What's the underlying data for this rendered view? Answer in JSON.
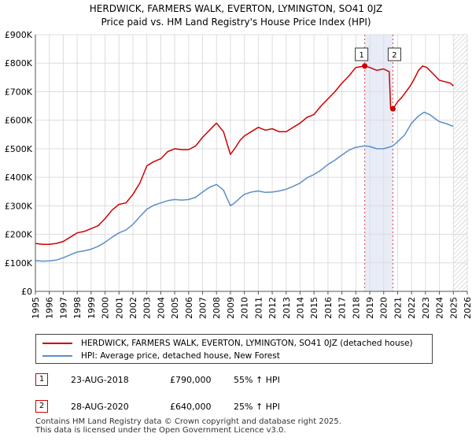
{
  "chart_data": {
    "type": "line",
    "title": "HERDWICK, FARMERS WALK, EVERTON, LYMINGTON, SO41 0JZ",
    "subtitle": "Price paid vs. HM Land Registry's House Price Index (HPI)",
    "xlabel": "",
    "ylabel": "",
    "xlim": [
      1995,
      2026
    ],
    "ylim": [
      0,
      900000
    ],
    "x_ticks": [
      1995,
      1996,
      1997,
      1998,
      1999,
      2000,
      2001,
      2002,
      2003,
      2004,
      2005,
      2006,
      2007,
      2008,
      2009,
      2010,
      2011,
      2012,
      2013,
      2014,
      2015,
      2016,
      2017,
      2018,
      2019,
      2020,
      2021,
      2022,
      2023,
      2024,
      2025,
      2026
    ],
    "y_ticks": [
      {
        "value": 0,
        "label": "£0"
      },
      {
        "value": 100000,
        "label": "£100K"
      },
      {
        "value": 200000,
        "label": "£200K"
      },
      {
        "value": 300000,
        "label": "£300K"
      },
      {
        "value": 400000,
        "label": "£400K"
      },
      {
        "value": 500000,
        "label": "£500K"
      },
      {
        "value": 600000,
        "label": "£600K"
      },
      {
        "value": 700000,
        "label": "£700K"
      },
      {
        "value": 800000,
        "label": "£800K"
      },
      {
        "value": 900000,
        "label": "£900K"
      }
    ],
    "grid": true,
    "shaded_period": [
      2018.64,
      2020.66
    ],
    "data_end": 2025.0,
    "series": [
      {
        "name": "HERDWICK, FARMERS WALK, EVERTON, LYMINGTON, SO41 0JZ (detached house)",
        "color": "#cc0000",
        "points": [
          [
            1995.0,
            168000
          ],
          [
            1995.5,
            165000
          ],
          [
            1996.0,
            165000
          ],
          [
            1996.5,
            168000
          ],
          [
            1997.0,
            175000
          ],
          [
            1997.5,
            190000
          ],
          [
            1998.0,
            205000
          ],
          [
            1998.5,
            210000
          ],
          [
            1999.0,
            220000
          ],
          [
            1999.5,
            230000
          ],
          [
            2000.0,
            255000
          ],
          [
            2000.5,
            285000
          ],
          [
            2001.0,
            305000
          ],
          [
            2001.5,
            310000
          ],
          [
            2002.0,
            340000
          ],
          [
            2002.5,
            380000
          ],
          [
            2003.0,
            440000
          ],
          [
            2003.5,
            455000
          ],
          [
            2004.0,
            465000
          ],
          [
            2004.5,
            490000
          ],
          [
            2005.0,
            500000
          ],
          [
            2005.5,
            497000
          ],
          [
            2006.0,
            497000
          ],
          [
            2006.5,
            510000
          ],
          [
            2007.0,
            540000
          ],
          [
            2007.5,
            565000
          ],
          [
            2008.0,
            590000
          ],
          [
            2008.5,
            560000
          ],
          [
            2009.0,
            480000
          ],
          [
            2009.3,
            500000
          ],
          [
            2009.7,
            530000
          ],
          [
            2010.0,
            545000
          ],
          [
            2010.5,
            560000
          ],
          [
            2011.0,
            575000
          ],
          [
            2011.5,
            565000
          ],
          [
            2012.0,
            570000
          ],
          [
            2012.5,
            560000
          ],
          [
            2013.0,
            560000
          ],
          [
            2013.5,
            575000
          ],
          [
            2014.0,
            590000
          ],
          [
            2014.5,
            610000
          ],
          [
            2015.0,
            620000
          ],
          [
            2015.5,
            650000
          ],
          [
            2016.0,
            675000
          ],
          [
            2016.5,
            700000
          ],
          [
            2017.0,
            730000
          ],
          [
            2017.5,
            755000
          ],
          [
            2018.0,
            785000
          ],
          [
            2018.64,
            790000
          ],
          [
            2019.0,
            785000
          ],
          [
            2019.5,
            775000
          ],
          [
            2020.0,
            780000
          ],
          [
            2020.4,
            770000
          ],
          [
            2020.5,
            640000
          ],
          [
            2020.66,
            640000
          ],
          [
            2020.8,
            650000
          ],
          [
            2021.0,
            665000
          ],
          [
            2021.3,
            680000
          ],
          [
            2021.6,
            700000
          ],
          [
            2021.9,
            720000
          ],
          [
            2022.2,
            745000
          ],
          [
            2022.5,
            775000
          ],
          [
            2022.8,
            790000
          ],
          [
            2023.1,
            785000
          ],
          [
            2023.4,
            770000
          ],
          [
            2023.7,
            755000
          ],
          [
            2024.0,
            740000
          ],
          [
            2024.4,
            735000
          ],
          [
            2024.8,
            730000
          ],
          [
            2025.0,
            720000
          ]
        ]
      },
      {
        "name": "HPI: Average price, detached house, New Forest",
        "color": "#5b8ec9",
        "points": [
          [
            1995.0,
            108000
          ],
          [
            1995.5,
            106000
          ],
          [
            1996.0,
            107000
          ],
          [
            1996.5,
            110000
          ],
          [
            1997.0,
            118000
          ],
          [
            1997.5,
            128000
          ],
          [
            1998.0,
            138000
          ],
          [
            1998.5,
            142000
          ],
          [
            1999.0,
            148000
          ],
          [
            1999.5,
            158000
          ],
          [
            2000.0,
            172000
          ],
          [
            2000.5,
            190000
          ],
          [
            2001.0,
            205000
          ],
          [
            2001.5,
            215000
          ],
          [
            2002.0,
            235000
          ],
          [
            2002.5,
            262000
          ],
          [
            2003.0,
            288000
          ],
          [
            2003.5,
            302000
          ],
          [
            2004.0,
            310000
          ],
          [
            2004.5,
            318000
          ],
          [
            2005.0,
            322000
          ],
          [
            2005.5,
            320000
          ],
          [
            2006.0,
            322000
          ],
          [
            2006.5,
            330000
          ],
          [
            2007.0,
            348000
          ],
          [
            2007.5,
            365000
          ],
          [
            2008.0,
            375000
          ],
          [
            2008.5,
            355000
          ],
          [
            2009.0,
            300000
          ],
          [
            2009.3,
            310000
          ],
          [
            2009.7,
            328000
          ],
          [
            2010.0,
            340000
          ],
          [
            2010.5,
            348000
          ],
          [
            2011.0,
            352000
          ],
          [
            2011.5,
            347000
          ],
          [
            2012.0,
            348000
          ],
          [
            2012.5,
            352000
          ],
          [
            2013.0,
            358000
          ],
          [
            2013.5,
            368000
          ],
          [
            2014.0,
            380000
          ],
          [
            2014.5,
            398000
          ],
          [
            2015.0,
            410000
          ],
          [
            2015.5,
            425000
          ],
          [
            2016.0,
            445000
          ],
          [
            2016.5,
            460000
          ],
          [
            2017.0,
            478000
          ],
          [
            2017.5,
            495000
          ],
          [
            2018.0,
            505000
          ],
          [
            2018.64,
            510000
          ],
          [
            2019.0,
            508000
          ],
          [
            2019.5,
            500000
          ],
          [
            2020.0,
            500000
          ],
          [
            2020.66,
            510000
          ],
          [
            2021.0,
            525000
          ],
          [
            2021.5,
            548000
          ],
          [
            2022.0,
            590000
          ],
          [
            2022.5,
            615000
          ],
          [
            2022.9,
            628000
          ],
          [
            2023.3,
            620000
          ],
          [
            2023.7,
            605000
          ],
          [
            2024.0,
            595000
          ],
          [
            2024.5,
            588000
          ],
          [
            2025.0,
            578000
          ]
        ]
      }
    ],
    "annotations": [
      {
        "label": "1",
        "x": 2018.64,
        "y": 790000
      },
      {
        "label": "2",
        "x": 2020.66,
        "y": 640000
      }
    ]
  },
  "legend": {
    "items": [
      {
        "label": "HERDWICK, FARMERS WALK, EVERTON, LYMINGTON, SO41 0JZ (detached house)",
        "color": "#cc0000"
      },
      {
        "label": "HPI: Average price, detached house, New Forest",
        "color": "#5b8ec9"
      }
    ]
  },
  "transactions": [
    {
      "num": "1",
      "date": "23-AUG-2018",
      "price": "£790,000",
      "hpi": "55% ↑ HPI"
    },
    {
      "num": "2",
      "date": "28-AUG-2020",
      "price": "£640,000",
      "hpi": "25% ↑ HPI"
    }
  ],
  "footer": {
    "line1": "Contains HM Land Registry data © Crown copyright and database right 2025.",
    "line2": "This data is licensed under the Open Government Licence v3.0."
  }
}
